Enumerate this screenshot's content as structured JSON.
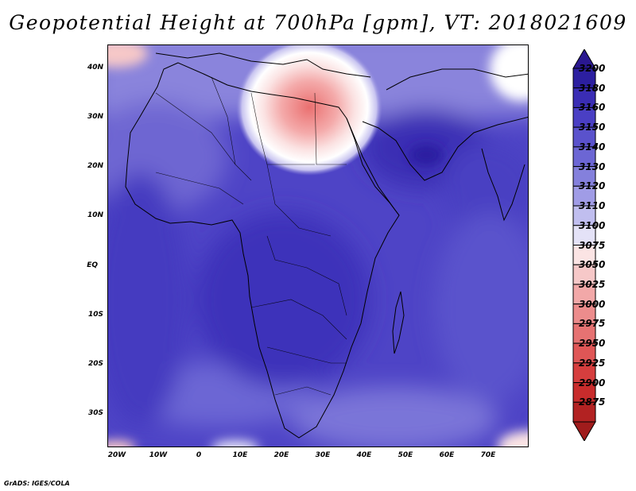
{
  "title": "Geopotential Height at 700hPa [gpm], VT: 2018021609",
  "credit": "GrADS: IGES/COLA",
  "map": {
    "lat_labels": [
      "40N",
      "30N",
      "20N",
      "10N",
      "EQ",
      "10S",
      "20S",
      "30S"
    ],
    "lon_labels": [
      "20W",
      "10W",
      "0",
      "10E",
      "20E",
      "30E",
      "40E",
      "50E",
      "60E",
      "70E"
    ],
    "projection": "lat-lon",
    "lon_range": [
      -22,
      80
    ],
    "lat_range": [
      -37,
      45
    ]
  },
  "colorbar": {
    "levels": [
      "3200",
      "3180",
      "3160",
      "3150",
      "3140",
      "3130",
      "3120",
      "3110",
      "3100",
      "3075",
      "3050",
      "3025",
      "3000",
      "2975",
      "2950",
      "2925",
      "2900",
      "2875"
    ],
    "colors": [
      "#2c1fa0",
      "#3a2db4",
      "#4a3fc4",
      "#5a52cc",
      "#6c66d4",
      "#8480dc",
      "#a09ce6",
      "#c0beef",
      "#e4e2f7",
      "#fbe4e4",
      "#f6c8c8",
      "#f2a8a8",
      "#ec8c8c",
      "#e67272",
      "#df5656",
      "#d63e3e",
      "#c82c2c",
      "#b22222"
    ],
    "top_arrow_color": "#2a1890",
    "bottom_arrow_color": "#a01c1c"
  },
  "field_colors": {
    "deep": "#3c30b8",
    "mid": "#5248c8",
    "light": "#7b74d6",
    "pale": "#b4b0ea",
    "white": "#ffffff",
    "pink": "#f6c4c4",
    "red": "#ec8080"
  }
}
